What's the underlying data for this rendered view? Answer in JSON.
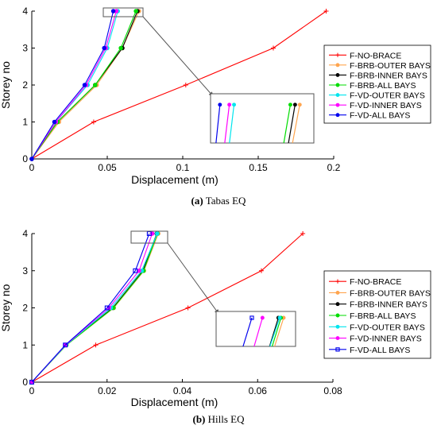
{
  "chart_data": [
    {
      "type": "line",
      "caption_letter": "(a)",
      "caption_text": "Tabas EQ",
      "xlabel": "Displacement (m)",
      "ylabel": "Storey no",
      "xlim": [
        0,
        0.2
      ],
      "ylim": [
        0,
        4
      ],
      "xticks": [
        "0",
        "0.05",
        "0.1",
        "0.15",
        "0.2"
      ],
      "xtick_values": [
        0,
        0.05,
        0.1,
        0.15,
        0.2
      ],
      "yticks": [
        "0",
        "1",
        "2",
        "3",
        "4"
      ],
      "ytick_values": [
        0,
        1,
        2,
        3,
        4
      ],
      "legend_position": "right",
      "y": [
        0,
        1,
        2,
        3,
        4
      ],
      "series": [
        {
          "name": "F-NO-BRACE",
          "color": "#ff0000",
          "marker": "plus",
          "x": [
            0,
            0.041,
            0.102,
            0.16,
            0.195
          ]
        },
        {
          "name": "F-BRB-OUTER BAYS",
          "color": "#ffa54f",
          "marker": "dot",
          "x": [
            0,
            0.018,
            0.043,
            0.06,
            0.071
          ]
        },
        {
          "name": "F-BRB-INNER BAYS",
          "color": "#000000",
          "marker": "dot",
          "x": [
            0,
            0.017,
            0.042,
            0.06,
            0.07
          ]
        },
        {
          "name": "F-BRB-ALL BAYS",
          "color": "#00dd00",
          "marker": "dot",
          "x": [
            0,
            0.017,
            0.042,
            0.059,
            0.069
          ]
        },
        {
          "name": "F-VD-OUTER BAYS",
          "color": "#00e5ee",
          "marker": "dot",
          "x": [
            0,
            0.016,
            0.037,
            0.05,
            0.057
          ]
        },
        {
          "name": "F-VD-INNER BAYS",
          "color": "#ff00ff",
          "marker": "dot",
          "x": [
            0,
            0.016,
            0.036,
            0.049,
            0.056
          ]
        },
        {
          "name": "F-VD-ALL BAYS",
          "color": "#0000ee",
          "marker": "dot",
          "x": [
            0,
            0.015,
            0.035,
            0.048,
            0.054
          ]
        }
      ]
    },
    {
      "type": "line",
      "caption_letter": "(b)",
      "caption_text": "Hills EQ",
      "xlabel": "Displacement (m)",
      "ylabel": "Storey no",
      "xlim": [
        0,
        0.08
      ],
      "ylim": [
        0,
        4
      ],
      "xticks": [
        "0",
        "0.02",
        "0.04",
        "0.06",
        "0.08"
      ],
      "xtick_values": [
        0,
        0.02,
        0.04,
        0.06,
        0.08
      ],
      "yticks": [
        "0",
        "1",
        "2",
        "3",
        "4"
      ],
      "ytick_values": [
        0,
        1,
        2,
        3,
        4
      ],
      "legend_position": "right",
      "y": [
        0,
        1,
        2,
        3,
        4
      ],
      "series": [
        {
          "name": "F-NO-BRACE",
          "color": "#ff0000",
          "marker": "plus",
          "x": [
            0,
            0.017,
            0.0415,
            0.061,
            0.072
          ]
        },
        {
          "name": "F-BRB-OUTER BAYS",
          "color": "#ffa54f",
          "marker": "dot",
          "x": [
            0,
            0.0092,
            0.0218,
            0.0298,
            0.0336
          ]
        },
        {
          "name": "F-BRB-INNER BAYS",
          "color": "#000000",
          "marker": "dot",
          "x": [
            0,
            0.0091,
            0.0215,
            0.0295,
            0.0332
          ]
        },
        {
          "name": "F-BRB-ALL BAYS",
          "color": "#00dd00",
          "marker": "dot",
          "x": [
            0,
            0.0092,
            0.0217,
            0.0297,
            0.0334
          ]
        },
        {
          "name": "F-VD-OUTER BAYS",
          "color": "#00e5ee",
          "marker": "dot",
          "x": [
            0,
            0.0091,
            0.021,
            0.0292,
            0.0333
          ]
        },
        {
          "name": "F-VD-INNER BAYS",
          "color": "#ff00ff",
          "marker": "dot",
          "x": [
            0,
            0.009,
            0.0205,
            0.0285,
            0.032
          ]
        },
        {
          "name": "F-VD-ALL BAYS",
          "color": "#0000ee",
          "marker": "square",
          "x": [
            0,
            0.0089,
            0.02,
            0.0275,
            0.0312
          ]
        }
      ]
    }
  ]
}
